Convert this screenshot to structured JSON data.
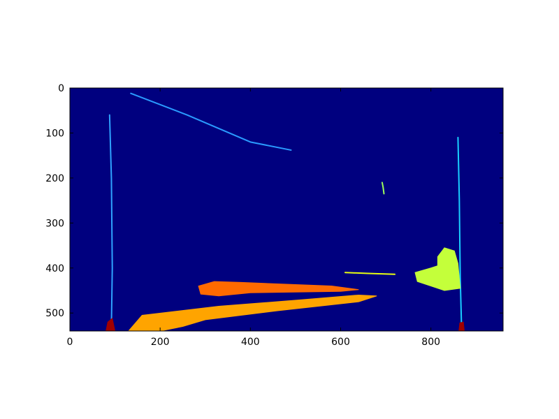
{
  "chart_data": {
    "type": "heatmap",
    "title": "",
    "xlabel": "",
    "ylabel": "",
    "xlim": [
      0,
      960
    ],
    "ylim": [
      540,
      0
    ],
    "x_ticks": [
      "0",
      "200",
      "400",
      "600",
      "800"
    ],
    "y_ticks": [
      "0",
      "100",
      "200",
      "300",
      "400",
      "500"
    ],
    "colormap": "jet",
    "background_color": "#00007f",
    "grid": false,
    "regions": [
      {
        "name": "left-edge-line",
        "color": "#2fa3ff",
        "points": [
          [
            88,
            60
          ],
          [
            92,
            200
          ],
          [
            94,
            400
          ],
          [
            92,
            530
          ]
        ]
      },
      {
        "name": "right-edge-line",
        "color": "#19cfff",
        "points": [
          [
            860,
            110
          ],
          [
            863,
            250
          ],
          [
            865,
            420
          ],
          [
            868,
            535
          ]
        ]
      },
      {
        "name": "diagonal-streak",
        "color": "#2a9bff",
        "points": [
          [
            135,
            12
          ],
          [
            260,
            60
          ],
          [
            400,
            120
          ],
          [
            490,
            138
          ]
        ]
      },
      {
        "name": "small-blob",
        "color": "#9dff5a",
        "points": [
          [
            692,
            210
          ],
          [
            694,
            220
          ],
          [
            696,
            235
          ]
        ]
      },
      {
        "name": "car-body",
        "color": "#ffa400",
        "polygon": [
          [
            130,
            540
          ],
          [
            160,
            505
          ],
          [
            330,
            485
          ],
          [
            520,
            470
          ],
          [
            640,
            460
          ],
          [
            680,
            462
          ],
          [
            640,
            475
          ],
          [
            460,
            495
          ],
          [
            300,
            515
          ],
          [
            250,
            530
          ],
          [
            200,
            540
          ]
        ]
      },
      {
        "name": "car-roof",
        "color": "#ff6a00",
        "polygon": [
          [
            285,
            440
          ],
          [
            320,
            430
          ],
          [
            380,
            432
          ],
          [
            580,
            440
          ],
          [
            640,
            448
          ],
          [
            600,
            452
          ],
          [
            400,
            455
          ],
          [
            330,
            462
          ],
          [
            290,
            458
          ]
        ]
      },
      {
        "name": "cyclist",
        "color": "#c4ff3a",
        "polygon": [
          [
            815,
            375
          ],
          [
            830,
            355
          ],
          [
            852,
            362
          ],
          [
            860,
            390
          ],
          [
            865,
            445
          ],
          [
            830,
            450
          ],
          [
            800,
            440
          ],
          [
            770,
            430
          ],
          [
            765,
            410
          ],
          [
            800,
            400
          ],
          [
            815,
            395
          ]
        ]
      },
      {
        "name": "mid-contour",
        "color": "#e8ff10",
        "points": [
          [
            610,
            410
          ],
          [
            660,
            412
          ],
          [
            720,
            414
          ]
        ]
      },
      {
        "name": "bottom-left-red",
        "color": "#a00000",
        "polygon": [
          [
            80,
            540
          ],
          [
            84,
            520
          ],
          [
            94,
            512
          ],
          [
            100,
            540
          ]
        ]
      },
      {
        "name": "bottom-right-red",
        "color": "#a00000",
        "polygon": [
          [
            862,
            540
          ],
          [
            864,
            522
          ],
          [
            872,
            520
          ],
          [
            874,
            540
          ]
        ]
      }
    ]
  }
}
